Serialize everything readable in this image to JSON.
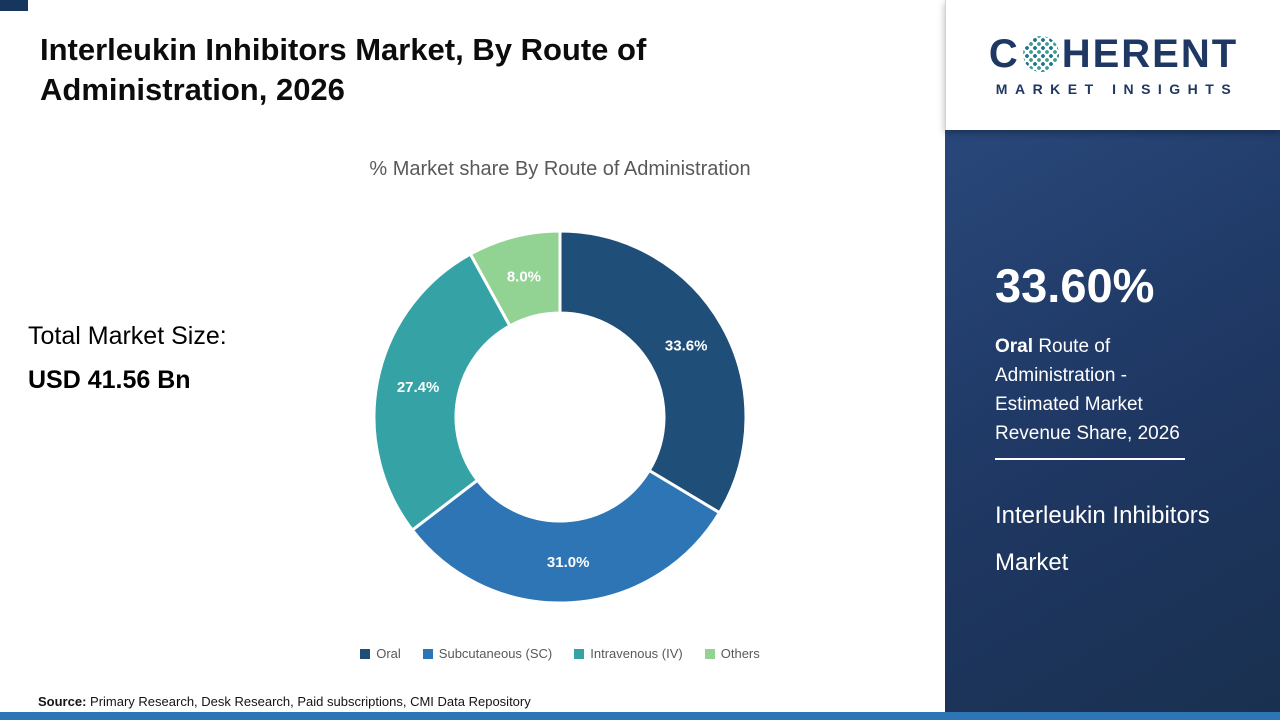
{
  "header": {
    "title": "Interleukin Inhibitors Market, By Route of Administration, 2026"
  },
  "market_size": {
    "label": "Total Market Size:",
    "value": "USD 41.56 Bn"
  },
  "chart_data": {
    "type": "pie",
    "donut": true,
    "title": "% Market share By Route of Administration",
    "categories": [
      "Oral",
      "Subcutaneous (SC)",
      "Intravenous (IV)",
      "Others"
    ],
    "values": [
      33.6,
      31.0,
      27.4,
      8.0
    ],
    "labels": [
      "33.6%",
      "31.0%",
      "27.4%",
      "8.0%"
    ],
    "colors": [
      "#1F4E79",
      "#2E75B6",
      "#35A2A5",
      "#92D293"
    ],
    "start_angle": "top",
    "direction": "clockwise",
    "inner_radius_ratio": 0.56,
    "legend_position": "bottom"
  },
  "source": {
    "label": "Source:",
    "text": "Primary Research, Desk Research, Paid subscriptions, CMI Data Repository"
  },
  "sidebar": {
    "logo": {
      "c": "C",
      "rest": "HERENT",
      "line2": "MARKET INSIGHTS",
      "icon": "dotted-globe-icon"
    },
    "stat_value": "33.60%",
    "stat_bold": "Oral",
    "stat_rest": "Route of Administration - Estimated Market Revenue Share, 2026",
    "market_name": "Interleukin Inhibitors Market",
    "panel_color": "#1F3864"
  },
  "accents": {
    "bottom_bar_color": "#2E75B6",
    "corner_accent_color": "#17365D"
  }
}
